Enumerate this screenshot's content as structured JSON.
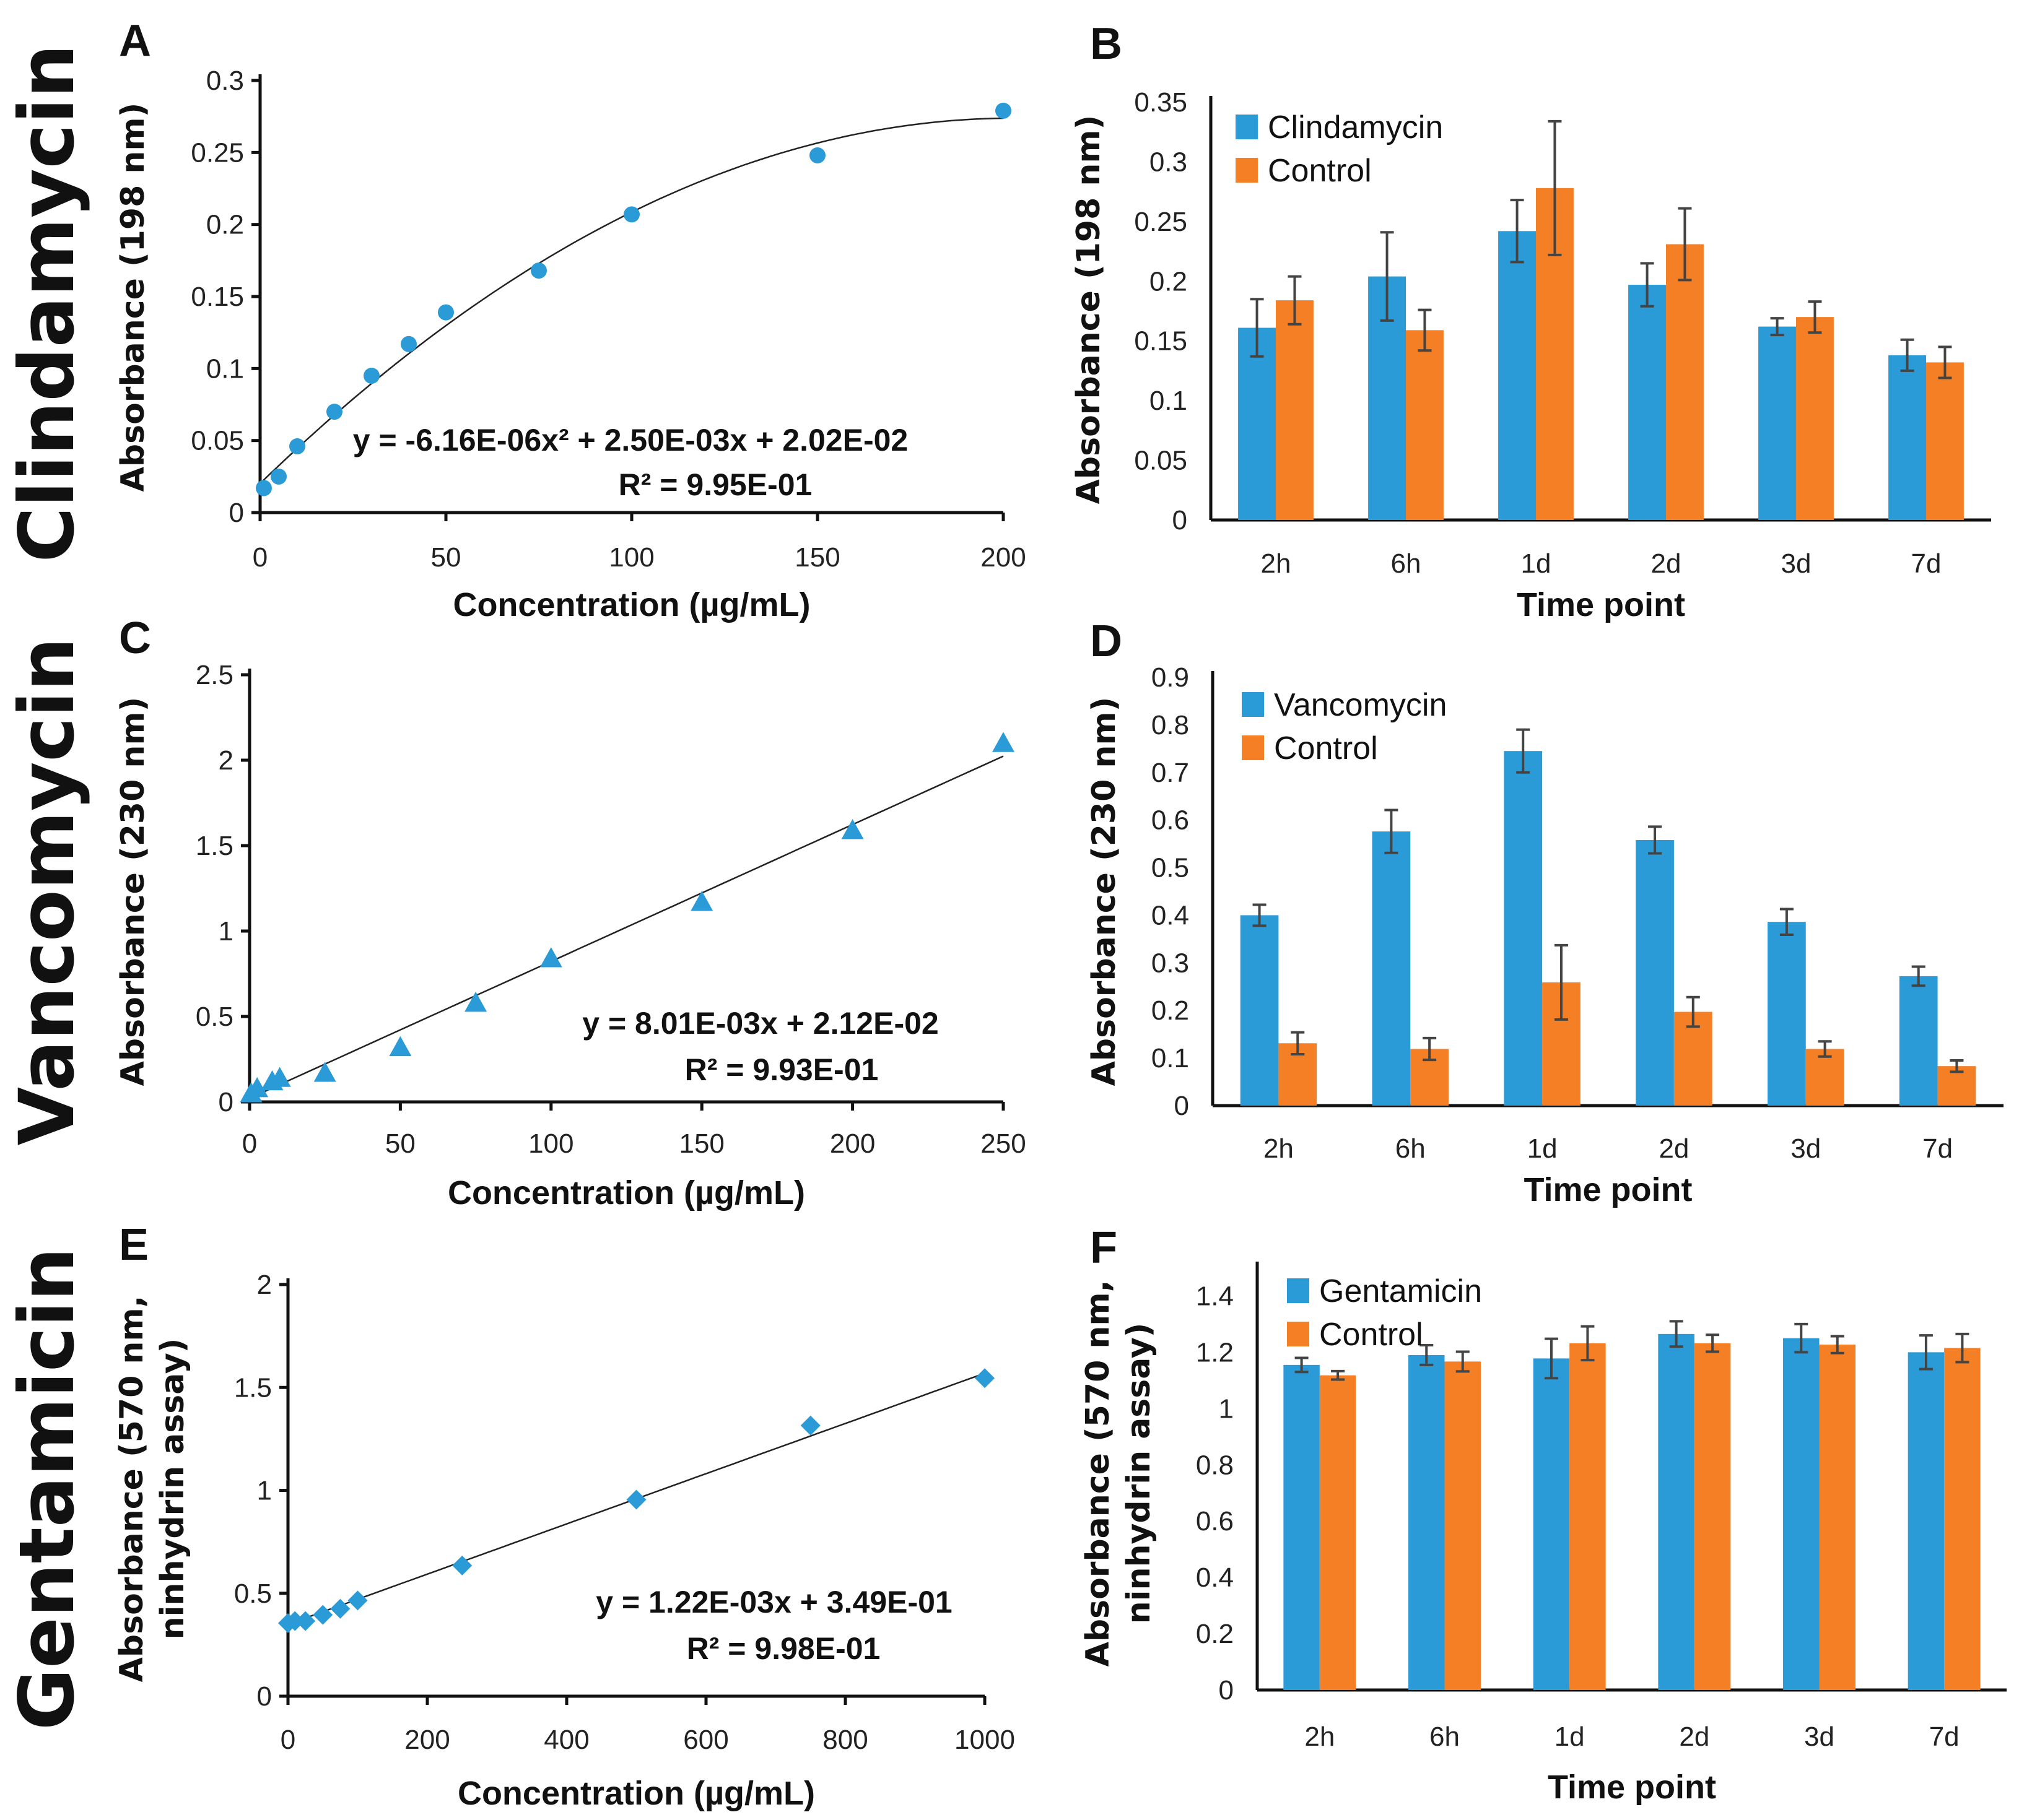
{
  "figure": {
    "rows": [
      {
        "drug_label": "Clindamycin"
      },
      {
        "drug_label": "Vancomycin"
      },
      {
        "drug_label": "Gentamicin"
      }
    ]
  },
  "colors": {
    "drug": "#2b9bd8",
    "control": "#f47f24",
    "axis": "#111111",
    "error_bar": "#444444"
  },
  "chart_data": [
    {
      "id": "A",
      "panel_label": "A",
      "type": "scatter",
      "marker": "circle",
      "title": "",
      "xlabel": "Concentration (µg/mL)",
      "ylabel": "Absorbance (198 nm)",
      "xlim": [
        0,
        200
      ],
      "ylim": [
        0,
        0.3
      ],
      "xticks": [
        0,
        50,
        100,
        150,
        200
      ],
      "xtick_labels": [
        "0",
        "50",
        "100",
        "150",
        "200"
      ],
      "yticks": [
        0,
        0.05,
        0.1,
        0.15,
        0.2,
        0.25,
        0.3
      ],
      "ytick_labels": [
        "0",
        "0.05",
        "0.1",
        "0.15",
        "0.2",
        "0.25",
        "0.3"
      ],
      "grid": false,
      "x": [
        1,
        5,
        10,
        20,
        30,
        40,
        50,
        75,
        100,
        150,
        200
      ],
      "y": [
        0.017,
        0.025,
        0.046,
        0.07,
        0.095,
        0.117,
        0.139,
        0.168,
        0.207,
        0.248,
        0.279
      ],
      "fit": {
        "type": "poly2",
        "coefficients": [
          -6.16e-06,
          0.0025,
          0.0202
        ]
      },
      "equation_label": "y = -6.16E-06x² + 2.50E-03x + 2.02E-02",
      "r2_label": "R² = 9.95E-01"
    },
    {
      "id": "B",
      "panel_label": "B",
      "type": "bar",
      "title": "",
      "xlabel": "Time point",
      "ylabel": "Absorbance (198 nm)",
      "ylim": [
        0,
        0.35
      ],
      "yticks": [
        0,
        0.05,
        0.1,
        0.15,
        0.2,
        0.25,
        0.3,
        0.35
      ],
      "ytick_labels": [
        "0",
        "0.05",
        "0.1",
        "0.15",
        "0.2",
        "0.25",
        "0.3",
        "0.35"
      ],
      "grid": false,
      "legend_position": "top-left",
      "categories": [
        "2h",
        "6h",
        "1d",
        "2d",
        "3d",
        "7d"
      ],
      "series": [
        {
          "name": "Clindamycin",
          "color_key": "drug",
          "values": [
            0.161,
            0.204,
            0.242,
            0.197,
            0.162,
            0.138
          ],
          "errors": [
            0.024,
            0.037,
            0.026,
            0.018,
            0.007,
            0.013
          ]
        },
        {
          "name": "Control",
          "color_key": "control",
          "values": [
            0.184,
            0.159,
            0.278,
            0.231,
            0.17,
            0.132
          ],
          "errors": [
            0.02,
            0.017,
            0.056,
            0.03,
            0.013,
            0.013
          ]
        }
      ]
    },
    {
      "id": "C",
      "panel_label": "C",
      "type": "scatter",
      "marker": "triangle",
      "title": "",
      "xlabel": "Concentration (µg/mL)",
      "ylabel": "Absorbance (230 nm)",
      "xlim": [
        0,
        250
      ],
      "ylim": [
        0,
        2.5
      ],
      "xticks": [
        0,
        50,
        100,
        150,
        200,
        250
      ],
      "xtick_labels": [
        "0",
        "50",
        "100",
        "150",
        "200",
        "250"
      ],
      "yticks": [
        0,
        0.5,
        1,
        1.5,
        2,
        2.5
      ],
      "ytick_labels": [
        "0",
        "0.5",
        "1",
        "1.5",
        "2",
        "2.5"
      ],
      "grid": false,
      "x": [
        0.5,
        2.5,
        7.5,
        10,
        25,
        50,
        75,
        100,
        150,
        200,
        250
      ],
      "y": [
        0.05,
        0.08,
        0.12,
        0.14,
        0.17,
        0.32,
        0.58,
        0.84,
        1.17,
        1.59,
        2.1
      ],
      "fit": {
        "type": "linear",
        "coefficients": [
          0.00801,
          0.0212
        ]
      },
      "equation_label": "y = 8.01E-03x + 2.12E-02",
      "r2_label": "R² = 9.93E-01"
    },
    {
      "id": "D",
      "panel_label": "D",
      "type": "bar",
      "title": "",
      "xlabel": "Time point",
      "ylabel": "Absorbance (230 nm)",
      "ylim": [
        0,
        0.9
      ],
      "yticks": [
        0,
        0.1,
        0.2,
        0.3,
        0.4,
        0.5,
        0.6,
        0.7,
        0.8,
        0.9
      ],
      "ytick_labels": [
        "0",
        "0.1",
        "0.2",
        "0.3",
        "0.4",
        "0.5",
        "0.6",
        "0.7",
        "0.8",
        "0.9"
      ],
      "grid": false,
      "legend_position": "top-left",
      "categories": [
        "2h",
        "6h",
        "1d",
        "2d",
        "3d",
        "7d"
      ],
      "series": [
        {
          "name": "Vancomycin",
          "color_key": "drug",
          "values": [
            0.4,
            0.576,
            0.745,
            0.558,
            0.386,
            0.272
          ],
          "errors": [
            0.022,
            0.045,
            0.045,
            0.028,
            0.027,
            0.02
          ]
        },
        {
          "name": "Control",
          "color_key": "control",
          "values": [
            0.131,
            0.119,
            0.259,
            0.197,
            0.119,
            0.083
          ],
          "errors": [
            0.023,
            0.023,
            0.078,
            0.031,
            0.016,
            0.012
          ]
        }
      ]
    },
    {
      "id": "E",
      "panel_label": "E",
      "type": "scatter",
      "marker": "diamond",
      "title": "",
      "xlabel": "Concentration (µg/mL)",
      "ylabel": "Absorbance (570 nm, ninhydrin assay)",
      "ylabel_lines": [
        "Absorbance (570 nm,",
        "ninhydrin assay)"
      ],
      "xlim": [
        0,
        1000
      ],
      "ylim": [
        0,
        2
      ],
      "xticks": [
        0,
        200,
        400,
        600,
        800,
        1000
      ],
      "xtick_labels": [
        "0",
        "200",
        "400",
        "600",
        "800",
        "1000"
      ],
      "yticks": [
        0,
        0.5,
        1,
        1.5,
        2
      ],
      "ytick_labels": [
        "0",
        "0.5",
        "1",
        "1.5",
        "2"
      ],
      "grid": false,
      "x": [
        0,
        10,
        25,
        50,
        75,
        100,
        250,
        500,
        750,
        1000
      ],
      "y": [
        0.355,
        0.365,
        0.365,
        0.395,
        0.425,
        0.465,
        0.635,
        0.955,
        1.315,
        1.545
      ],
      "fit": {
        "type": "linear",
        "coefficients": [
          0.00122,
          0.349
        ]
      },
      "equation_label": "y = 1.22E-03x + 3.49E-01",
      "r2_label": "R² = 9.98E-01"
    },
    {
      "id": "F",
      "panel_label": "F",
      "type": "bar",
      "title": "",
      "xlabel": "Time point",
      "ylabel": "Absorbance (570 nm, ninhydrin assay)",
      "ylabel_lines": [
        "Absorbance (570 nm,",
        "ninhydrin assay)"
      ],
      "ylim": [
        0,
        1.5
      ],
      "yticks": [
        0,
        0.2,
        0.4,
        0.6,
        0.8,
        1,
        1.2,
        1.4
      ],
      "ytick_labels": [
        "0",
        "0.2",
        "0.4",
        "0.6",
        "0.8",
        "1",
        "1.2",
        "1.4"
      ],
      "grid": false,
      "legend_position": "top-left",
      "categories": [
        "2h",
        "6h",
        "1d",
        "2d",
        "3d",
        "7d"
      ],
      "series": [
        {
          "name": "Gentamicin",
          "color_key": "drug",
          "values": [
            1.155,
            1.19,
            1.178,
            1.265,
            1.25,
            1.2
          ],
          "errors": [
            0.025,
            0.035,
            0.07,
            0.045,
            0.05,
            0.06
          ]
        },
        {
          "name": "Control",
          "color_key": "control",
          "values": [
            1.118,
            1.167,
            1.232,
            1.232,
            1.227,
            1.215
          ],
          "errors": [
            0.015,
            0.035,
            0.06,
            0.03,
            0.03,
            0.05
          ]
        }
      ]
    }
  ]
}
